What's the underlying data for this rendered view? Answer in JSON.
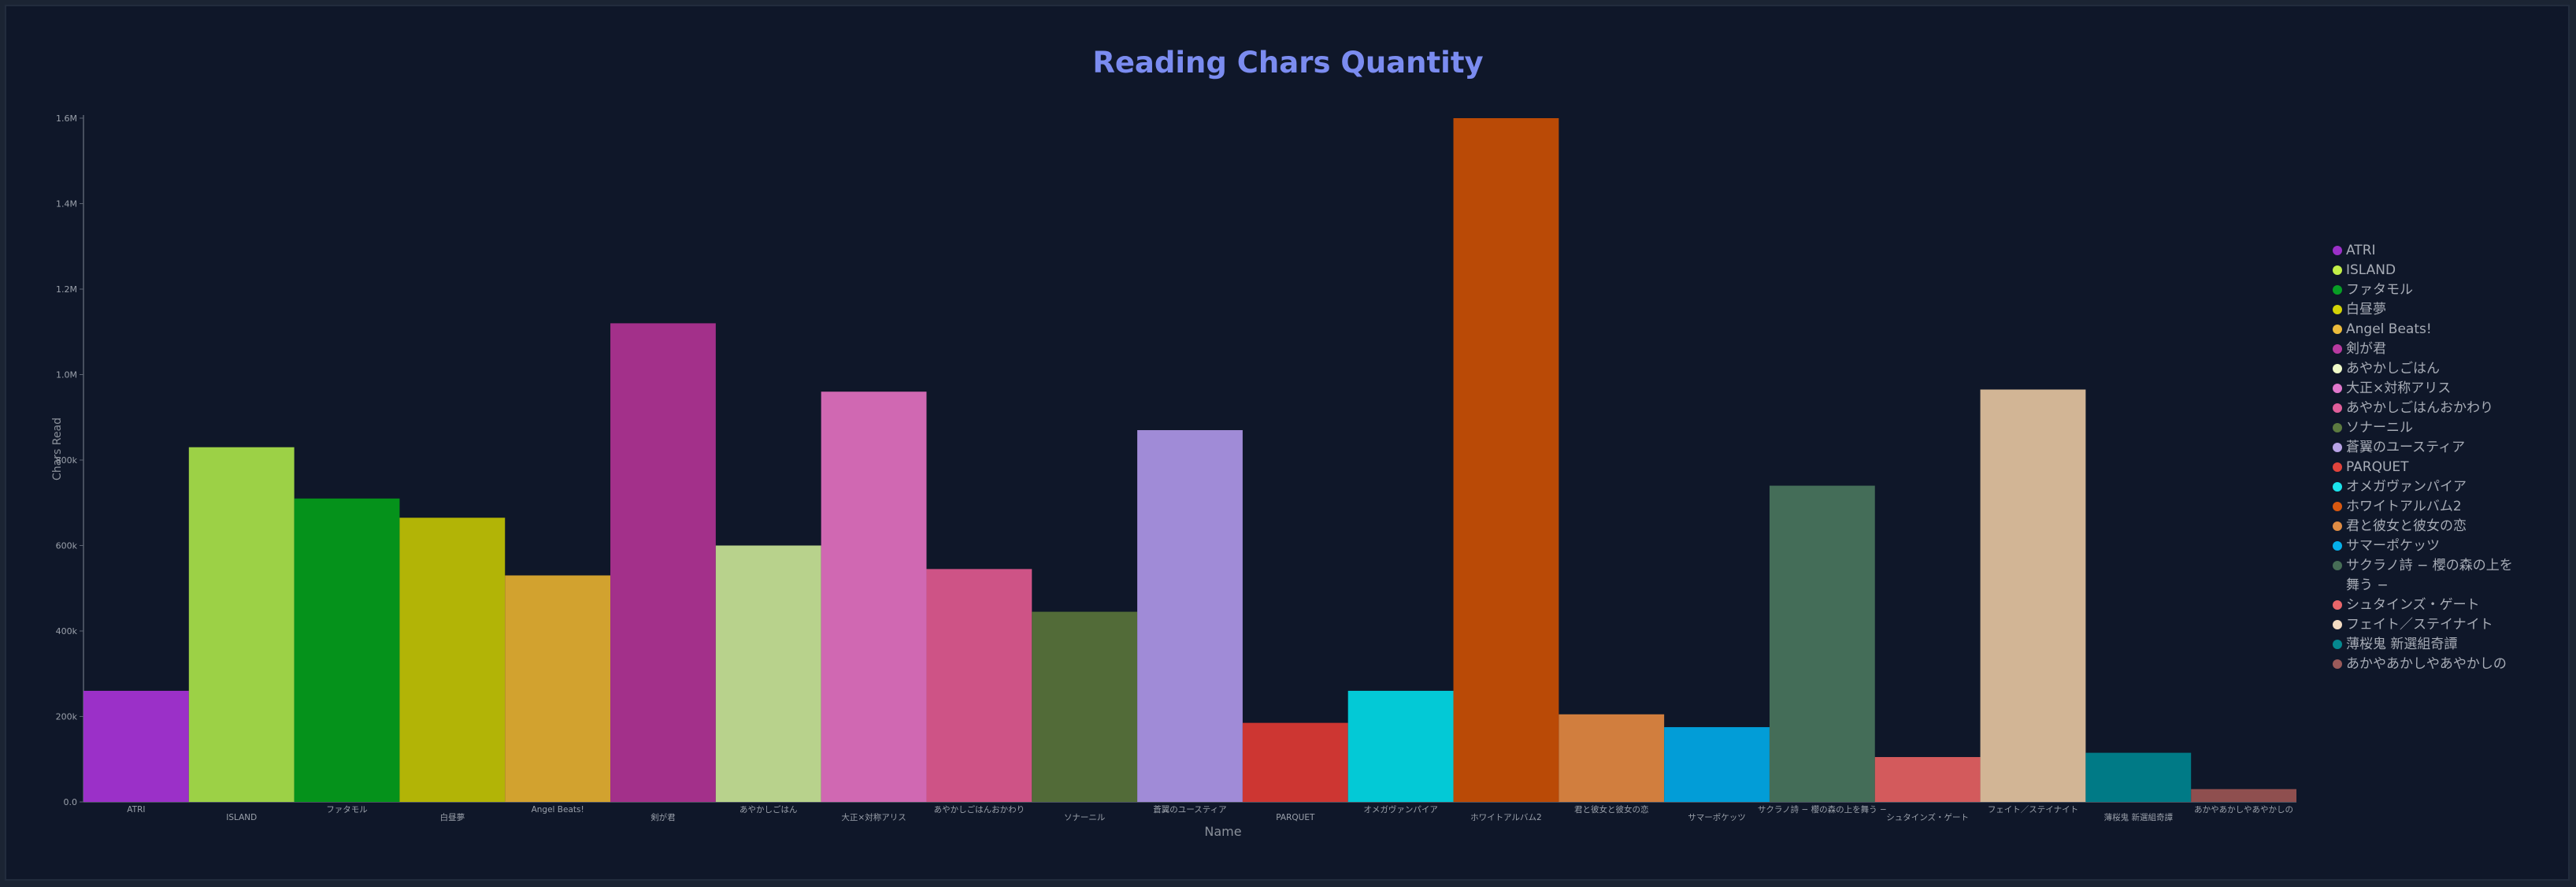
{
  "chart_data": {
    "type": "bar",
    "title": "Reading Chars Quantity",
    "xlabel": "Name",
    "ylabel": "Chars Read",
    "ylim": [
      0,
      1600000
    ],
    "yticks": [
      0,
      200000,
      400000,
      600000,
      800000,
      1000000,
      1200000,
      1400000,
      1600000
    ],
    "ytick_labels": [
      "0.0",
      "200k",
      "400k",
      "600k",
      "800k",
      "1.0M",
      "1.2M",
      "1.4M",
      "1.6M"
    ],
    "grid": false,
    "legend_position": "right",
    "categories": [
      "ATRI",
      "ISLAND",
      "ファタモル",
      "白昼夢",
      "Angel Beats!",
      "剣が君",
      "あやかしごはん",
      "大正×対称アリス",
      "あやかしごはんおかわり",
      "ソナーニル",
      "蒼翼のユースティア",
      "PARQUET",
      "オメガヴァンパイア",
      "ホワイトアルバム2",
      "君と彼女と彼女の恋",
      "サマーポケッツ",
      "サクラノ詩 − 櫻の森の上を舞う −",
      "シュタインズ・ゲート",
      "フェイト／ステイナイト",
      "薄桜鬼 新選組奇譚",
      "あかやあかしやあやかしの"
    ],
    "tick_labels": [
      "ATRI",
      "ISLAND",
      "ファタモル",
      "白昼夢",
      "Angel Beats!",
      "剣が君",
      "あやかしごはん",
      "大正×対称アリス",
      "あやかしごはんおかわり",
      "ソナーニル",
      "蒼翼のユースティア",
      "PARQUET",
      "オメガヴァンパイア",
      "ホワイトアルバム2",
      "君と彼女と彼女の恋",
      "サマーポケッツ",
      "サクラノ詩 − 櫻の森の上を舞う −",
      "シュタインズ・ゲート",
      "フェイト／ステイナイト",
      "薄桜鬼 新選組奇譚",
      "あかやあかしやあやかしの"
    ],
    "values": [
      260000,
      830000,
      710000,
      665000,
      530000,
      1120000,
      600000,
      960000,
      545000,
      445000,
      870000,
      185000,
      260000,
      1600000,
      205000,
      175000,
      740000,
      105000,
      965000,
      115000,
      30000
    ],
    "colors": [
      "#9b30c8",
      "#9cd146",
      "#05921b",
      "#b2b406",
      "#d2a22f",
      "#a3308a",
      "#b8d28c",
      "#d068b2",
      "#ce5386",
      "#526b38",
      "#a08bd7",
      "#cd3632",
      "#03c9d6",
      "#ba4a06",
      "#d17e3e",
      "#029dd7",
      "#446d58",
      "#d35a5c",
      "#d2b595",
      "#007a86",
      "#8f4f4f"
    ],
    "legend_colors": [
      "#9b30c8",
      "#c3f048",
      "#089e25",
      "#d3d306",
      "#ecbc3c",
      "#b83aa0",
      "#f0fbc9",
      "#e077cc",
      "#e05e9a",
      "#5c7a40",
      "#b8a3e6",
      "#e0433c",
      "#1be3ec",
      "#d85810",
      "#e08c44",
      "#05b0ea",
      "#466d56",
      "#e8666a",
      "#f3dcc3",
      "#05888f",
      "#9a5a5a"
    ]
  }
}
